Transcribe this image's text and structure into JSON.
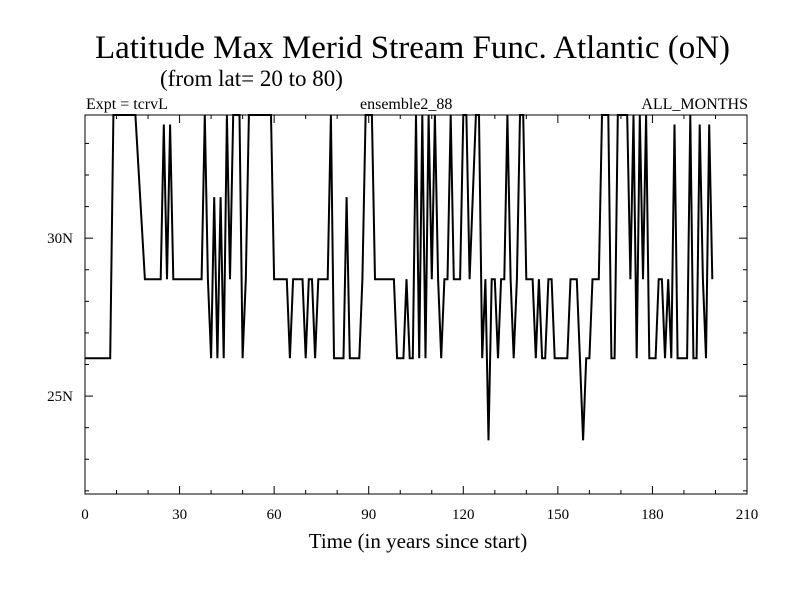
{
  "header": {
    "title": "Latitude Max Merid Stream Func. Atlantic (oN)",
    "subtitle": "(from lat= 20 to 80)",
    "expt": "Expt = tcrvL",
    "run": "ensemble2_88",
    "months": "ALL_MONTHS"
  },
  "colors": {
    "line": "#000000",
    "background": "#ffffff"
  },
  "chart_data": {
    "type": "line",
    "title": "Latitude Max Merid Stream Func. Atlantic (oN)",
    "xlabel": "Time (in years since start)",
    "ylabel": "",
    "xlim": [
      0,
      210
    ],
    "ylim": [
      21.9,
      33.9
    ],
    "x_ticks": [
      0,
      30,
      60,
      90,
      120,
      150,
      180,
      210
    ],
    "x_tick_labels": [
      "0",
      "30",
      "60",
      "90",
      "120",
      "150",
      "180",
      "210"
    ],
    "y_ticks": [
      25,
      30
    ],
    "y_tick_labels": [
      "25N",
      "30N"
    ],
    "grid": false,
    "series": [
      {
        "values": [
          [
            0,
            26.2
          ],
          [
            8,
            26.2
          ],
          [
            9,
            33.9
          ],
          [
            16,
            33.9
          ],
          [
            19,
            28.7
          ],
          [
            24,
            28.7
          ],
          [
            25,
            33.6
          ],
          [
            26,
            28.7
          ],
          [
            27,
            33.6
          ],
          [
            28,
            28.7
          ],
          [
            37,
            28.7
          ],
          [
            38,
            33.9
          ],
          [
            39,
            28.7
          ],
          [
            40,
            26.2
          ],
          [
            41,
            31.3
          ],
          [
            42,
            26.2
          ],
          [
            43,
            31.3
          ],
          [
            44,
            26.2
          ],
          [
            45,
            33.9
          ],
          [
            46,
            28.7
          ],
          [
            47,
            33.9
          ],
          [
            49,
            33.9
          ],
          [
            50,
            26.2
          ],
          [
            51,
            28.7
          ],
          [
            52,
            33.9
          ],
          [
            59,
            33.9
          ],
          [
            60,
            28.7
          ],
          [
            64,
            28.7
          ],
          [
            65,
            26.2
          ],
          [
            66,
            28.7
          ],
          [
            69,
            28.7
          ],
          [
            70,
            26.2
          ],
          [
            71,
            28.7
          ],
          [
            72,
            28.7
          ],
          [
            73,
            26.2
          ],
          [
            74,
            28.7
          ],
          [
            77,
            28.7
          ],
          [
            78,
            33.9
          ],
          [
            79,
            26.2
          ],
          [
            82,
            26.2
          ],
          [
            83,
            31.3
          ],
          [
            84,
            26.2
          ],
          [
            87,
            26.2
          ],
          [
            88,
            28.7
          ],
          [
            89,
            33.9
          ],
          [
            91,
            33.9
          ],
          [
            92,
            28.7
          ],
          [
            98,
            28.7
          ],
          [
            99,
            26.2
          ],
          [
            101,
            26.2
          ],
          [
            102,
            28.7
          ],
          [
            103,
            26.2
          ],
          [
            104,
            26.2
          ],
          [
            105,
            33.9
          ],
          [
            106,
            26.2
          ],
          [
            107,
            33.9
          ],
          [
            108,
            26.2
          ],
          [
            109,
            33.9
          ],
          [
            110,
            28.7
          ],
          [
            111,
            33.9
          ],
          [
            112,
            28.7
          ],
          [
            113,
            26.2
          ],
          [
            114,
            28.7
          ],
          [
            115,
            28.7
          ],
          [
            116,
            33.9
          ],
          [
            117,
            28.7
          ],
          [
            119,
            28.7
          ],
          [
            120,
            33.9
          ],
          [
            121,
            33.9
          ],
          [
            122,
            28.7
          ],
          [
            124,
            33.9
          ],
          [
            125,
            33.9
          ],
          [
            126,
            26.2
          ],
          [
            127,
            28.7
          ],
          [
            128,
            23.6
          ],
          [
            129,
            28.7
          ],
          [
            130,
            28.7
          ],
          [
            131,
            26.2
          ],
          [
            132,
            28.7
          ],
          [
            133,
            28.7
          ],
          [
            134,
            33.9
          ],
          [
            135,
            28.7
          ],
          [
            136,
            26.2
          ],
          [
            137,
            28.7
          ],
          [
            138,
            33.9
          ],
          [
            139,
            33.9
          ],
          [
            140,
            28.7
          ],
          [
            141,
            28.7
          ],
          [
            142,
            28.7
          ],
          [
            143,
            26.2
          ],
          [
            144,
            28.7
          ],
          [
            145,
            26.2
          ],
          [
            146,
            26.2
          ],
          [
            147,
            28.7
          ],
          [
            148,
            28.7
          ],
          [
            149,
            26.2
          ],
          [
            153,
            26.2
          ],
          [
            154,
            28.7
          ],
          [
            156,
            28.7
          ],
          [
            157,
            26.2
          ],
          [
            158,
            23.6
          ],
          [
            159,
            26.2
          ],
          [
            160,
            26.2
          ],
          [
            161,
            28.7
          ],
          [
            163,
            28.7
          ],
          [
            164,
            33.9
          ],
          [
            166,
            33.9
          ],
          [
            167,
            26.2
          ],
          [
            168,
            26.2
          ],
          [
            169,
            33.9
          ],
          [
            172,
            33.9
          ],
          [
            173,
            28.7
          ],
          [
            174,
            33.9
          ],
          [
            175,
            26.2
          ],
          [
            176,
            33.9
          ],
          [
            177,
            28.7
          ],
          [
            178,
            33.9
          ],
          [
            179,
            26.2
          ],
          [
            181,
            26.2
          ],
          [
            182,
            28.7
          ],
          [
            183,
            28.7
          ],
          [
            184,
            26.2
          ],
          [
            185,
            28.7
          ],
          [
            186,
            26.2
          ],
          [
            187,
            33.6
          ],
          [
            188,
            26.2
          ],
          [
            191,
            26.2
          ],
          [
            192,
            33.9
          ],
          [
            193,
            26.2
          ],
          [
            194,
            26.2
          ],
          [
            195,
            33.6
          ],
          [
            196,
            28.7
          ],
          [
            197,
            26.2
          ],
          [
            198,
            33.6
          ],
          [
            199,
            28.7
          ]
        ]
      }
    ]
  }
}
